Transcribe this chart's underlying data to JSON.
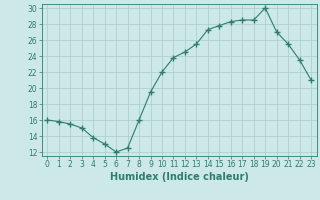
{
  "xlabel": "Humidex (Indice chaleur)",
  "ylabel": "",
  "x": [
    0,
    1,
    2,
    3,
    4,
    5,
    6,
    7,
    8,
    9,
    10,
    11,
    12,
    13,
    14,
    15,
    16,
    17,
    18,
    19,
    20,
    21,
    22,
    23
  ],
  "y": [
    16,
    15.8,
    15.5,
    15,
    13.8,
    13,
    12,
    12.5,
    16,
    19.5,
    22,
    23.8,
    24.5,
    25.5,
    27.3,
    27.8,
    28.3,
    28.5,
    28.5,
    30,
    27,
    25.5,
    23.5,
    21
  ],
  "line_color": "#2e7d6e",
  "marker": "+",
  "marker_size": 4,
  "bg_color": "#cce8e8",
  "grid_color": "#aacccc",
  "ylim": [
    12,
    30
  ],
  "yticks": [
    12,
    14,
    16,
    18,
    20,
    22,
    24,
    26,
    28,
    30
  ],
  "axis_fontsize": 6.5,
  "tick_fontsize": 5.5,
  "label_fontsize": 7
}
